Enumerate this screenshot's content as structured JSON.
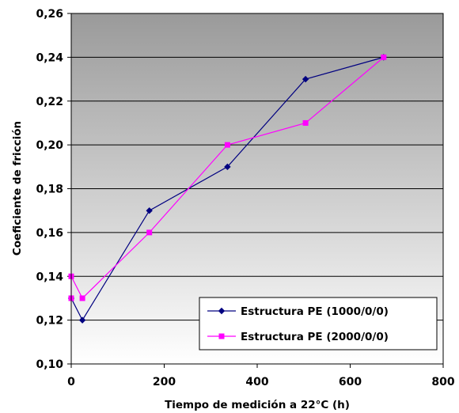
{
  "chart_data": {
    "type": "line",
    "title": "",
    "xlabel": "Tiempo de medición a 22°C (h)",
    "ylabel": "Coeficiente de fricción",
    "xlim": [
      0,
      800
    ],
    "ylim": [
      0.1,
      0.26
    ],
    "x_ticks": [
      0,
      200,
      400,
      600,
      800
    ],
    "x_tick_labels": [
      "0",
      "200",
      "400",
      "600",
      "800"
    ],
    "y_ticks": [
      0.1,
      0.12,
      0.14,
      0.16,
      0.18,
      0.2,
      0.22,
      0.24,
      0.26
    ],
    "y_tick_labels": [
      "0,10",
      "0,12",
      "0,14",
      "0,16",
      "0,18",
      "0,20",
      "0,22",
      "0,24",
      "0,26"
    ],
    "grid": "horizontal",
    "legend_position": "bottom-right",
    "background": "gray-gradient",
    "series": [
      {
        "name": "Estructura PE (1000/0/0)",
        "color": "#000080",
        "marker": "diamond",
        "x": [
          0,
          24,
          168,
          336,
          504,
          672
        ],
        "y": [
          0.13,
          0.12,
          0.17,
          0.19,
          0.23,
          0.24
        ]
      },
      {
        "name": "Estructura PE (2000/0/0)",
        "color": "#FF00FF",
        "marker": "square",
        "x": [
          0,
          0,
          24,
          168,
          336,
          504,
          672
        ],
        "y": [
          0.13,
          0.14,
          0.13,
          0.16,
          0.2,
          0.21,
          0.24
        ]
      }
    ]
  }
}
